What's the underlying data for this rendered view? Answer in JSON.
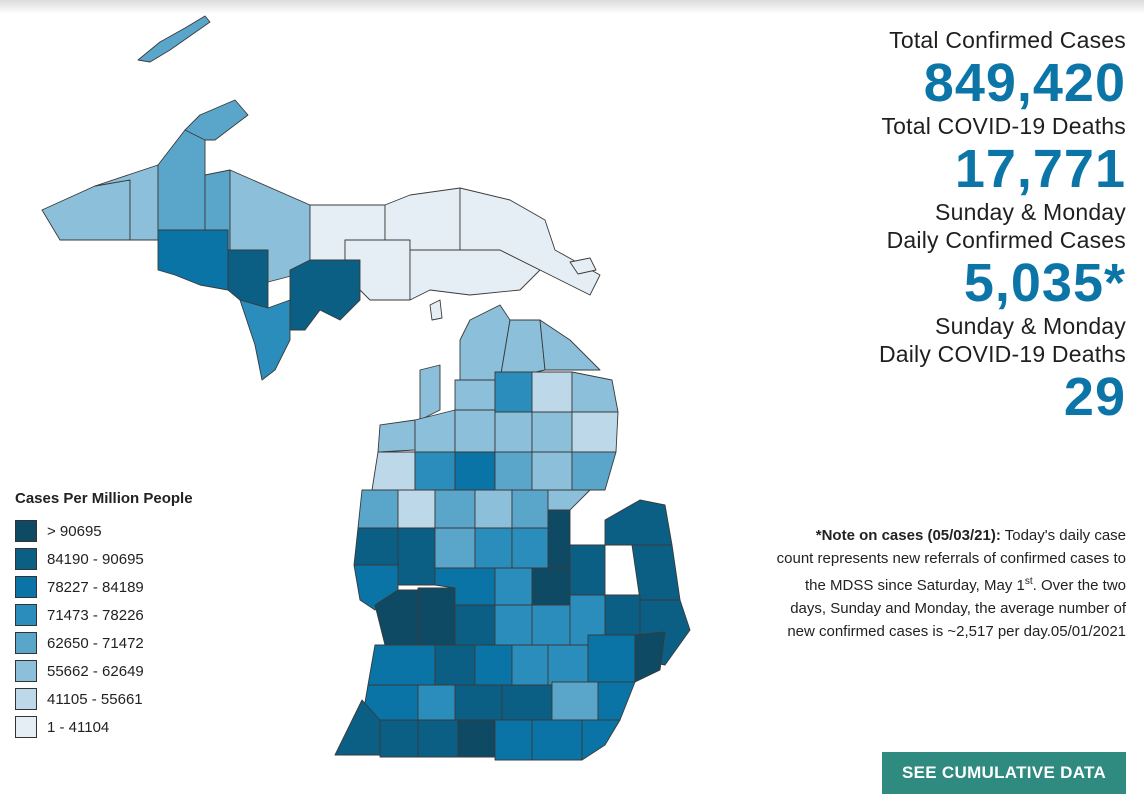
{
  "stats": {
    "total_cases_label": "Total Confirmed Cases",
    "total_cases_value": "849,420",
    "total_deaths_label": "Total COVID-19 Deaths",
    "total_deaths_value": "17,771",
    "daily_cases_label_1": "Sunday & Monday",
    "daily_cases_label_2": "Daily Confirmed Cases",
    "daily_cases_value": "5,035*",
    "daily_deaths_label_1": "Sunday & Monday",
    "daily_deaths_label_2": "Daily COVID-19 Deaths",
    "daily_deaths_value": "29"
  },
  "note": {
    "heading": "*Note on cases (05/03/21):",
    "text_1": " Today's daily case count represents new referrals of confirmed cases to the MDSS since Saturday, May 1",
    "sup": "st",
    "text_2": ".  Over the two days, Sunday and Monday, the average number of new confirmed cases is ~2,517 per day.05/01/2021"
  },
  "cta": {
    "label": "SEE CUMULATIVE DATA"
  },
  "legend": {
    "title": "Cases Per Million People",
    "items": [
      {
        "label": "> 90695",
        "color": "#0e4a64"
      },
      {
        "label": "84190 - 90695",
        "color": "#0b5f85"
      },
      {
        "label": "78227 - 84189",
        "color": "#0a74a6"
      },
      {
        "label": "71473 - 78226",
        "color": "#2b8dbb"
      },
      {
        "label": "62650 - 71472",
        "color": "#5aa6cb"
      },
      {
        "label": "55662 - 62649",
        "color": "#8cbfd9"
      },
      {
        "label": "41105 - 55661",
        "color": "#bdd8e9"
      },
      {
        "label": "1 - 41104",
        "color": "#e6eef5"
      }
    ]
  },
  "colors": {
    "accent": "#0c75a8",
    "button": "#2f8a7f"
  }
}
